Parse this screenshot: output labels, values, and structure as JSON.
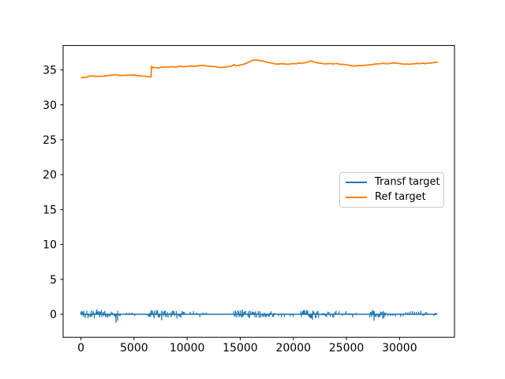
{
  "figure": {
    "background": "#ffffff",
    "text_color": "#000000",
    "spine_color": "#000000"
  },
  "chart_data": {
    "type": "line",
    "title": "",
    "xlabel": "",
    "ylabel": "",
    "xlim": [
      -1675,
      35175
    ],
    "ylim": [
      -3.3,
      38.5
    ],
    "x_ticks": [
      0,
      5000,
      10000,
      15000,
      20000,
      25000,
      30000
    ],
    "y_ticks": [
      0,
      5,
      10,
      15,
      20,
      25,
      30,
      35
    ],
    "grid": false,
    "legend": {
      "position": "center-right",
      "entries": [
        {
          "label": "Transf target",
          "color": "#1f77b4"
        },
        {
          "label": "Ref target",
          "color": "#ff7f0e"
        }
      ]
    },
    "series": [
      {
        "name": "Transf target",
        "color": "#1f77b4",
        "render": "noisy_baseline",
        "baseline": 0,
        "x_start": 0,
        "x_end": 33500,
        "seed": 42,
        "spike_bursts": [
          [
            0,
            2400,
            55,
            0.6,
            "both"
          ],
          [
            2500,
            3700,
            120,
            0.5,
            "both"
          ],
          [
            4300,
            5100,
            260,
            0.35,
            "both"
          ],
          [
            6340,
            9050,
            55,
            0.6,
            "both"
          ],
          [
            9200,
            9750,
            110,
            0.5,
            "both"
          ],
          [
            10300,
            11800,
            300,
            0.45,
            "both"
          ],
          [
            14400,
            16600,
            55,
            0.6,
            "both"
          ],
          [
            16700,
            18300,
            80,
            0.55,
            "both"
          ],
          [
            18600,
            20100,
            280,
            0.45,
            "both"
          ],
          [
            20700,
            22550,
            60,
            0.6,
            "both"
          ],
          [
            22700,
            24050,
            110,
            0.5,
            "both"
          ],
          [
            24300,
            26100,
            320,
            0.45,
            "both"
          ],
          [
            27200,
            28750,
            60,
            0.6,
            "both"
          ],
          [
            28900,
            30500,
            240,
            0.35,
            "down"
          ],
          [
            30600,
            32100,
            200,
            0.5,
            "up"
          ],
          [
            32200,
            32600,
            130,
            0.4,
            "both"
          ],
          [
            33250,
            33520,
            130,
            0.4,
            "both"
          ]
        ],
        "extreme_spikes": [
          [
            1500,
            0.7
          ],
          [
            3300,
            -1.2
          ],
          [
            3450,
            -0.95
          ],
          [
            7600,
            -0.85
          ],
          [
            15200,
            0.7
          ],
          [
            21800,
            -0.8
          ],
          [
            27600,
            -0.9
          ]
        ]
      },
      {
        "name": "Ref target",
        "color": "#ff7f0e",
        "render": "line",
        "jitter": 0.09,
        "points": [
          [
            0,
            33.9
          ],
          [
            300,
            33.95
          ],
          [
            600,
            34.0
          ],
          [
            900,
            34.1
          ],
          [
            1100,
            34.15
          ],
          [
            1400,
            34.05
          ],
          [
            1700,
            34.1
          ],
          [
            2000,
            34.1
          ],
          [
            2300,
            34.15
          ],
          [
            2600,
            34.2
          ],
          [
            2900,
            34.25
          ],
          [
            3200,
            34.3
          ],
          [
            3500,
            34.25
          ],
          [
            3800,
            34.2
          ],
          [
            4100,
            34.2
          ],
          [
            4400,
            34.25
          ],
          [
            4700,
            34.3
          ],
          [
            5000,
            34.25
          ],
          [
            5300,
            34.2
          ],
          [
            5600,
            34.15
          ],
          [
            5900,
            34.1
          ],
          [
            6200,
            34.05
          ],
          [
            6500,
            34.0
          ],
          [
            6600,
            34.0
          ],
          [
            6650,
            35.55
          ],
          [
            6750,
            35.3
          ],
          [
            7000,
            35.35
          ],
          [
            7300,
            35.3
          ],
          [
            7600,
            35.4
          ],
          [
            7900,
            35.45
          ],
          [
            8200,
            35.4
          ],
          [
            8500,
            35.45
          ],
          [
            8800,
            35.4
          ],
          [
            9100,
            35.45
          ],
          [
            9400,
            35.5
          ],
          [
            9700,
            35.45
          ],
          [
            10000,
            35.5
          ],
          [
            10300,
            35.55
          ],
          [
            10600,
            35.5
          ],
          [
            10900,
            35.55
          ],
          [
            11200,
            35.6
          ],
          [
            11500,
            35.65
          ],
          [
            11800,
            35.6
          ],
          [
            12100,
            35.55
          ],
          [
            12400,
            35.5
          ],
          [
            12700,
            35.45
          ],
          [
            13000,
            35.4
          ],
          [
            13300,
            35.35
          ],
          [
            13600,
            35.4
          ],
          [
            13900,
            35.5
          ],
          [
            14200,
            35.55
          ],
          [
            14400,
            35.75
          ],
          [
            14600,
            35.6
          ],
          [
            14900,
            35.65
          ],
          [
            15200,
            35.75
          ],
          [
            15500,
            35.9
          ],
          [
            15800,
            36.1
          ],
          [
            16100,
            36.35
          ],
          [
            16400,
            36.45
          ],
          [
            16700,
            36.4
          ],
          [
            17000,
            36.3
          ],
          [
            17300,
            36.2
          ],
          [
            17600,
            36.1
          ],
          [
            17900,
            36.0
          ],
          [
            18200,
            35.9
          ],
          [
            18500,
            35.85
          ],
          [
            18800,
            35.9
          ],
          [
            19100,
            35.85
          ],
          [
            19400,
            35.8
          ],
          [
            19700,
            35.85
          ],
          [
            20000,
            35.9
          ],
          [
            20300,
            35.9
          ],
          [
            20600,
            35.95
          ],
          [
            20900,
            36.0
          ],
          [
            21200,
            36.05
          ],
          [
            21500,
            36.2
          ],
          [
            21700,
            36.3
          ],
          [
            21900,
            36.15
          ],
          [
            22200,
            36.0
          ],
          [
            22500,
            35.95
          ],
          [
            22800,
            35.9
          ],
          [
            23100,
            35.85
          ],
          [
            23400,
            35.9
          ],
          [
            23700,
            35.85
          ],
          [
            24000,
            35.9
          ],
          [
            24300,
            35.85
          ],
          [
            24600,
            35.8
          ],
          [
            24900,
            35.75
          ],
          [
            25200,
            35.7
          ],
          [
            25500,
            35.6
          ],
          [
            25800,
            35.55
          ],
          [
            26100,
            35.6
          ],
          [
            26400,
            35.6
          ],
          [
            26700,
            35.65
          ],
          [
            27000,
            35.7
          ],
          [
            27300,
            35.75
          ],
          [
            27600,
            35.8
          ],
          [
            27900,
            35.85
          ],
          [
            28200,
            35.9
          ],
          [
            28500,
            35.95
          ],
          [
            28800,
            35.9
          ],
          [
            29100,
            35.95
          ],
          [
            29400,
            36.0
          ],
          [
            29700,
            35.95
          ],
          [
            30000,
            35.9
          ],
          [
            30300,
            35.85
          ],
          [
            30600,
            35.85
          ],
          [
            30900,
            35.8
          ],
          [
            31200,
            35.85
          ],
          [
            31500,
            35.9
          ],
          [
            31800,
            35.9
          ],
          [
            32100,
            35.95
          ],
          [
            32400,
            35.9
          ],
          [
            32700,
            35.95
          ],
          [
            33000,
            36.0
          ],
          [
            33300,
            36.05
          ],
          [
            33600,
            36.1
          ]
        ]
      }
    ]
  }
}
